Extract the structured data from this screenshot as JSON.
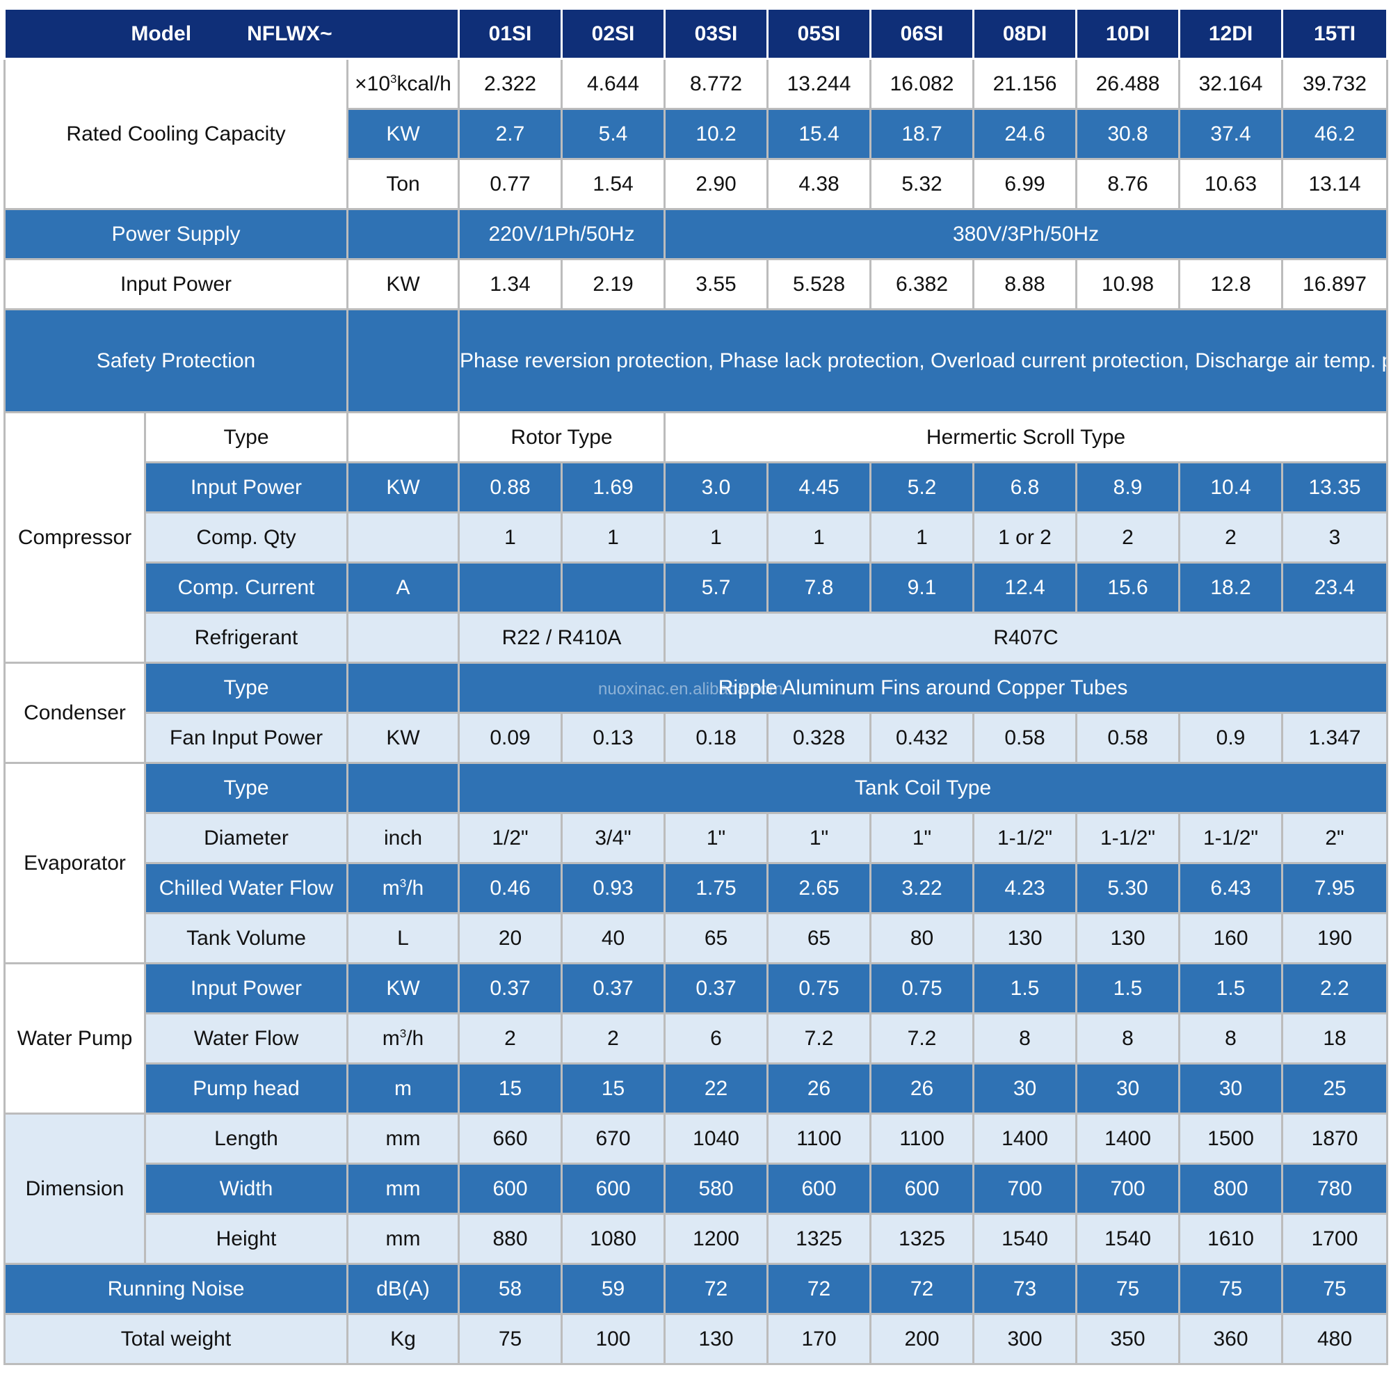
{
  "header": {
    "model_label": "Model",
    "model_series": "NFLWX~",
    "models": [
      "01SI",
      "02SI",
      "03SI",
      "05SI",
      "06SI",
      "08DI",
      "10DI",
      "12DI",
      "15TI"
    ]
  },
  "rated_cooling": {
    "label": "Rated Cooling Capacity",
    "rows": [
      {
        "unit_pre": "×10",
        "unit_sup": "3",
        "unit_post": "kcal/h",
        "values": [
          "2.322",
          "4.644",
          "8.772",
          "13.244",
          "16.082",
          "21.156",
          "26.488",
          "32.164",
          "39.732"
        ]
      },
      {
        "unit": "KW",
        "values": [
          "2.7",
          "5.4",
          "10.2",
          "15.4",
          "18.7",
          "24.6",
          "30.8",
          "37.4",
          "46.2"
        ]
      },
      {
        "unit": "Ton",
        "values": [
          "0.77",
          "1.54",
          "2.90",
          "4.38",
          "5.32",
          "6.99",
          "8.76",
          "10.63",
          "13.14"
        ]
      }
    ]
  },
  "power_supply": {
    "label": "Power Supply",
    "single_phase": "220V/1Ph/50Hz",
    "three_phase": "380V/3Ph/50Hz"
  },
  "input_power": {
    "label": "Input Power",
    "unit": "KW",
    "values": [
      "1.34",
      "2.19",
      "3.55",
      "5.528",
      "6.382",
      "8.88",
      "10.98",
      "12.8",
      "16.897"
    ]
  },
  "safety": {
    "label": "Safety Protection",
    "text": "Phase reversion protection, Phase lack protection, Overload current protection, Discharge air temp.  protection, Low & High pressure protection, Low temp.  protection, Water flow protection"
  },
  "compressor": {
    "label": "Compressor",
    "type": {
      "label": "Type",
      "small": "Rotor Type",
      "large": "Hermertic Scroll Type"
    },
    "input_power": {
      "label": "Input Power",
      "unit": "KW",
      "values": [
        "0.88",
        "1.69",
        "3.0",
        "4.45",
        "5.2",
        "6.8",
        "8.9",
        "10.4",
        "13.35"
      ]
    },
    "qty": {
      "label": "Comp. Qty",
      "values": [
        "1",
        "1",
        "1",
        "1",
        "1",
        "1 or 2",
        "2",
        "2",
        "3"
      ]
    },
    "current": {
      "label": "Comp. Current",
      "unit": "A",
      "values": [
        "",
        "",
        "5.7",
        "7.8",
        "9.1",
        "12.4",
        "15.6",
        "18.2",
        "23.4"
      ]
    },
    "refrigerant": {
      "label": "Refrigerant",
      "small": "R22 / R410A",
      "large": "R407C"
    }
  },
  "condenser": {
    "label": "Condenser",
    "type": {
      "label": "Type",
      "value": "Ripple Aluminum Fins around Copper Tubes"
    },
    "fan": {
      "label": "Fan Input Power",
      "unit": "KW",
      "values": [
        "0.09",
        "0.13",
        "0.18",
        "0.328",
        "0.432",
        "0.58",
        "0.58",
        "0.9",
        "1.347"
      ]
    }
  },
  "evaporator": {
    "label": "Evaporator",
    "type": {
      "label": "Type",
      "value": "Tank Coil Type"
    },
    "diameter": {
      "label": "Diameter",
      "unit": "inch",
      "values": [
        "1/2\"",
        "3/4\"",
        "1\"",
        "1\"",
        "1\"",
        "1-1/2\"",
        "1-1/2\"",
        "1-1/2\"",
        "2\""
      ]
    },
    "flow": {
      "label": "Chilled Water Flow",
      "unit_pre": "m",
      "unit_sup": "3",
      "unit_post": "/h",
      "values": [
        "0.46",
        "0.93",
        "1.75",
        "2.65",
        "3.22",
        "4.23",
        "5.30",
        "6.43",
        "7.95"
      ]
    },
    "tank": {
      "label": "Tank Volume",
      "unit": "L",
      "values": [
        "20",
        "40",
        "65",
        "65",
        "80",
        "130",
        "130",
        "160",
        "190"
      ]
    }
  },
  "pump": {
    "label": "Water Pump",
    "input_power": {
      "label": "Input Power",
      "unit": "KW",
      "values": [
        "0.37",
        "0.37",
        "0.37",
        "0.75",
        "0.75",
        "1.5",
        "1.5",
        "1.5",
        "2.2"
      ]
    },
    "flow": {
      "label": "Water Flow",
      "unit_pre": "m",
      "unit_sup": "3",
      "unit_post": "/h",
      "values": [
        "2",
        "2",
        "6",
        "7.2",
        "7.2",
        "8",
        "8",
        "8",
        "18"
      ]
    },
    "head": {
      "label": "Pump head",
      "unit": "m",
      "values": [
        "15",
        "15",
        "22",
        "26",
        "26",
        "30",
        "30",
        "30",
        "25"
      ]
    }
  },
  "dimension": {
    "label": "Dimension",
    "length": {
      "label": "Length",
      "unit": "mm",
      "values": [
        "660",
        "670",
        "1040",
        "1100",
        "1100",
        "1400",
        "1400",
        "1500",
        "1870"
      ]
    },
    "width": {
      "label": "Width",
      "unit": "mm",
      "values": [
        "600",
        "600",
        "580",
        "600",
        "600",
        "700",
        "700",
        "800",
        "780"
      ]
    },
    "height": {
      "label": "Height",
      "unit": "mm",
      "values": [
        "880",
        "1080",
        "1200",
        "1325",
        "1325",
        "1540",
        "1540",
        "1610",
        "1700"
      ]
    }
  },
  "noise": {
    "label": "Running Noise",
    "unit": "dB(A)",
    "values": [
      "58",
      "59",
      "72",
      "72",
      "72",
      "73",
      "75",
      "75",
      "75"
    ]
  },
  "weight": {
    "label": "Total weight",
    "unit": "Kg",
    "values": [
      "75",
      "100",
      "130",
      "170",
      "200",
      "300",
      "350",
      "360",
      "480"
    ]
  },
  "watermark": "nuoxinac.en.alibaba.com",
  "colors": {
    "header": "#0f2f78",
    "blue_row": "#2f72b4",
    "light_row": "#dde9f5"
  }
}
